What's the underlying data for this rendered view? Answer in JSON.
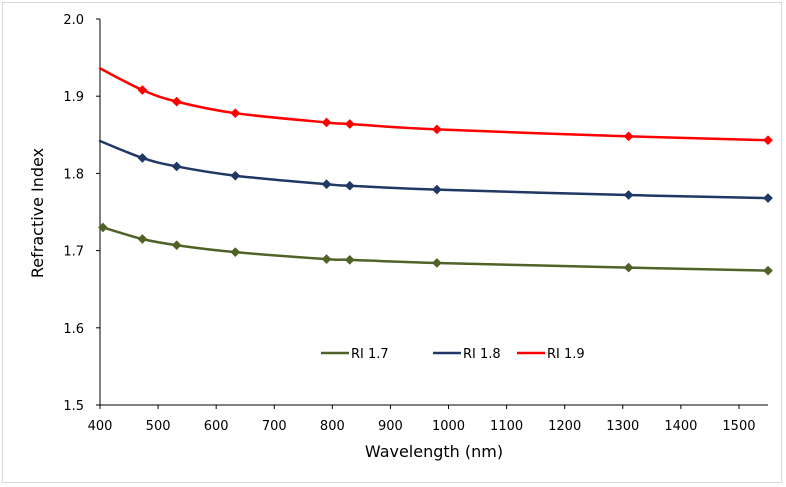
{
  "chart_data": {
    "type": "line",
    "title": "",
    "xlabel": "Wavelength (nm)",
    "ylabel": "Refractive Index",
    "xlim": [
      400,
      1550
    ],
    "ylim": [
      1.5,
      2.0
    ],
    "x_ticks": [
      "400",
      "500",
      "600",
      "700",
      "800",
      "900",
      "1000",
      "1100",
      "1200",
      "1300",
      "1400",
      "1500"
    ],
    "y_ticks": [
      "1.5",
      "1.6",
      "1.7",
      "1.8",
      "1.9",
      "2.0"
    ],
    "grid": false,
    "legend_position": "inside-lower-center",
    "series": [
      {
        "name": "RI 1.7",
        "color": "#4f6228",
        "marker": "diamond",
        "x": [
          405,
          473,
          532,
          633,
          790,
          830,
          980,
          1310,
          1550
        ],
        "y": [
          1.73,
          1.715,
          1.707,
          1.698,
          1.689,
          1.688,
          1.684,
          1.678,
          1.674
        ]
      },
      {
        "name": "RI 1.8",
        "color": "#1f3864",
        "marker": "diamond",
        "x": [
          473,
          532,
          633,
          790,
          830,
          980,
          1310,
          1550
        ],
        "y": [
          1.82,
          1.809,
          1.797,
          1.786,
          1.784,
          1.779,
          1.772,
          1.768
        ]
      },
      {
        "name": "RI 1.9",
        "color": "#ff0000",
        "marker": "diamond",
        "x": [
          473,
          532,
          633,
          790,
          830,
          980,
          1310,
          1550
        ],
        "y": [
          1.908,
          1.893,
          1.878,
          1.866,
          1.864,
          1.857,
          1.848,
          1.843
        ]
      }
    ],
    "curve_start": {
      "RI 1.8": [
        400,
        1.842
      ],
      "RI 1.9": [
        400,
        1.936
      ]
    }
  }
}
